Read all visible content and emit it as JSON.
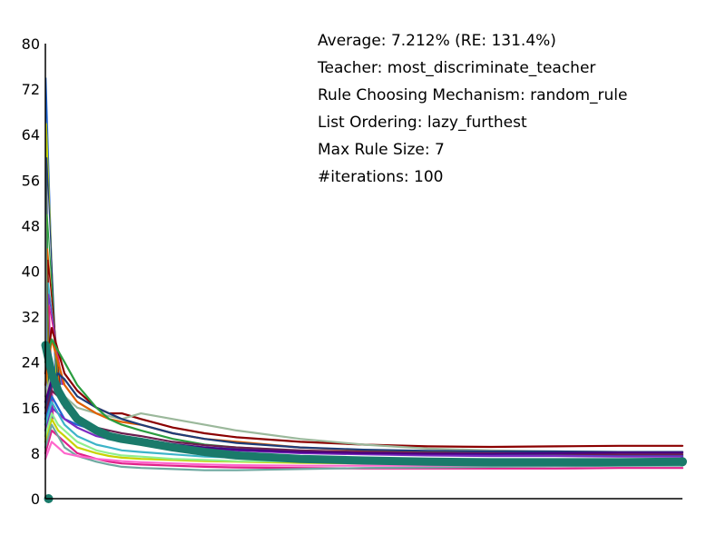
{
  "chart_data": {
    "type": "line",
    "ylim": [
      0,
      80
    ],
    "yticks": [
      0,
      8,
      16,
      24,
      32,
      40,
      48,
      56,
      64,
      72,
      80
    ],
    "xlim": [
      0,
      100
    ],
    "grid": false,
    "annotations": [
      "Average: 7.212% (RE: 131.4%)",
      "Teacher: most_discriminate_teacher",
      "Rule Choosing Mechanism: random_rule",
      "List Ordering: lazy_furthest",
      "Max Rule Size: 7",
      "#iterations: 100"
    ],
    "x": [
      0,
      1,
      2,
      3,
      5,
      8,
      10,
      12,
      15,
      20,
      25,
      30,
      40,
      50,
      60,
      70,
      80,
      90,
      100
    ],
    "series": [
      {
        "color": "#8b0000",
        "values": [
          22,
          30,
          26,
          22,
          19,
          16,
          15,
          15,
          14,
          12.5,
          11.5,
          10.8,
          10,
          9.5,
          9.2,
          9.1,
          9.2,
          9.3,
          9.3
        ]
      },
      {
        "color": "#9bb89b",
        "values": [
          18,
          22,
          20,
          18,
          16,
          15,
          14.5,
          14,
          15,
          14,
          13,
          12,
          10.5,
          9.5,
          8.8,
          8.5,
          8.3,
          8.2,
          8.1
        ]
      },
      {
        "color": "#e06000",
        "values": [
          20,
          28,
          24,
          20,
          17,
          15,
          14,
          13.5,
          13,
          11.5,
          10.5,
          10,
          9,
          8.5,
          8.3,
          8.2,
          8.1,
          8.2,
          8.2
        ]
      },
      {
        "color": "#1e3c78",
        "values": [
          16,
          20,
          22,
          21,
          18,
          16,
          15,
          14,
          13,
          11.5,
          10.5,
          9.8,
          9,
          8.6,
          8.4,
          8.3,
          8.3,
          8.2,
          8.2
        ]
      },
      {
        "color": "#2a9d3f",
        "values": [
          24,
          28,
          26,
          24,
          20,
          16,
          14,
          13,
          12,
          10.5,
          9.5,
          9,
          8.4,
          8,
          7.8,
          7.7,
          7.6,
          7.6,
          7.6
        ]
      },
      {
        "color": "#1e64d2",
        "values": [
          14,
          18,
          16,
          14,
          13,
          12,
          11.5,
          11,
          10.5,
          9.5,
          9,
          8.7,
          8.2,
          7.9,
          7.8,
          7.7,
          7.6,
          7.6,
          7.5
        ]
      },
      {
        "color": "#7b2bc2",
        "values": [
          12,
          16,
          15,
          14,
          12.5,
          11,
          10.5,
          10,
          9.8,
          9.2,
          8.8,
          8.5,
          8,
          7.8,
          7.6,
          7.5,
          7.5,
          7.4,
          7.4
        ]
      },
      {
        "color": "#6b1f4f",
        "values": [
          15,
          19,
          18,
          16,
          14,
          12.5,
          12,
          11.5,
          11,
          10,
          9.4,
          9,
          8.5,
          8.2,
          8,
          7.9,
          7.9,
          7.8,
          7.8
        ]
      },
      {
        "color": "#c8d200",
        "values": [
          10,
          14,
          12,
          11,
          9,
          8,
          7.5,
          7.2,
          7,
          6.8,
          6.6,
          6.5,
          6.3,
          6.2,
          6.1,
          6.1,
          6,
          6,
          6
        ]
      },
      {
        "color": "#e0208a",
        "values": [
          8,
          12,
          11,
          10,
          8,
          7,
          6.5,
          6.2,
          6,
          5.8,
          5.6,
          5.5,
          5.4,
          5.3,
          5.3,
          5.3,
          5.3,
          5.4,
          5.4
        ]
      },
      {
        "color": "#6fa8a0",
        "values": [
          9,
          13,
          11,
          9,
          7.5,
          6.5,
          6,
          5.6,
          5.4,
          5.2,
          5,
          5,
          5.2,
          5.4,
          5.5,
          5.6,
          5.7,
          5.8,
          5.8
        ]
      },
      {
        "color": "#90ee90",
        "values": [
          11,
          15,
          13,
          12,
          10,
          8.5,
          8,
          7.6,
          7.4,
          7,
          6.8,
          6.6,
          6.5,
          6.4,
          6.3,
          6.3,
          6.3,
          6.4,
          6.4
        ]
      },
      {
        "color": "#ff66cc",
        "values": [
          7,
          10,
          9,
          8,
          7.5,
          7,
          6.8,
          6.6,
          6.4,
          6.2,
          6,
          5.9,
          5.8,
          5.8,
          5.8,
          5.9,
          5.9,
          6,
          6
        ]
      },
      {
        "color": "#3cb4c8",
        "values": [
          13,
          17,
          15,
          13,
          11,
          9.5,
          9,
          8.5,
          8.2,
          7.8,
          7.4,
          7.2,
          7,
          6.8,
          6.7,
          6.7,
          6.7,
          6.7,
          6.7
        ]
      },
      {
        "color": "#4b0082",
        "values": [
          17,
          21,
          19,
          17,
          14.5,
          12.5,
          11.5,
          11,
          10.5,
          9.6,
          9,
          8.6,
          8.2,
          8,
          7.9,
          7.9,
          8,
          8.1,
          8.1
        ]
      },
      {
        "color": "#1a7a6a",
        "values": [
          27,
          22,
          19,
          17,
          14,
          12,
          11,
          10.5,
          10,
          9,
          8.2,
          7.6,
          7,
          6.7,
          6.5,
          6.4,
          6.4,
          6.4,
          6.5
        ]
      }
    ],
    "early_spikes": [
      {
        "color": "#1e64d2",
        "peak": 74
      },
      {
        "color": "#c8d200",
        "peak": 66
      },
      {
        "color": "#1e3c78",
        "peak": 60
      },
      {
        "color": "#2a9d3f",
        "peak": 50
      },
      {
        "color": "#e06000",
        "peak": 44
      },
      {
        "color": "#8b0000",
        "peak": 42
      },
      {
        "color": "#3cb4c8",
        "peak": 38
      },
      {
        "color": "#7b2bc2",
        "peak": 36
      },
      {
        "color": "#e0208a",
        "peak": 34
      }
    ]
  }
}
